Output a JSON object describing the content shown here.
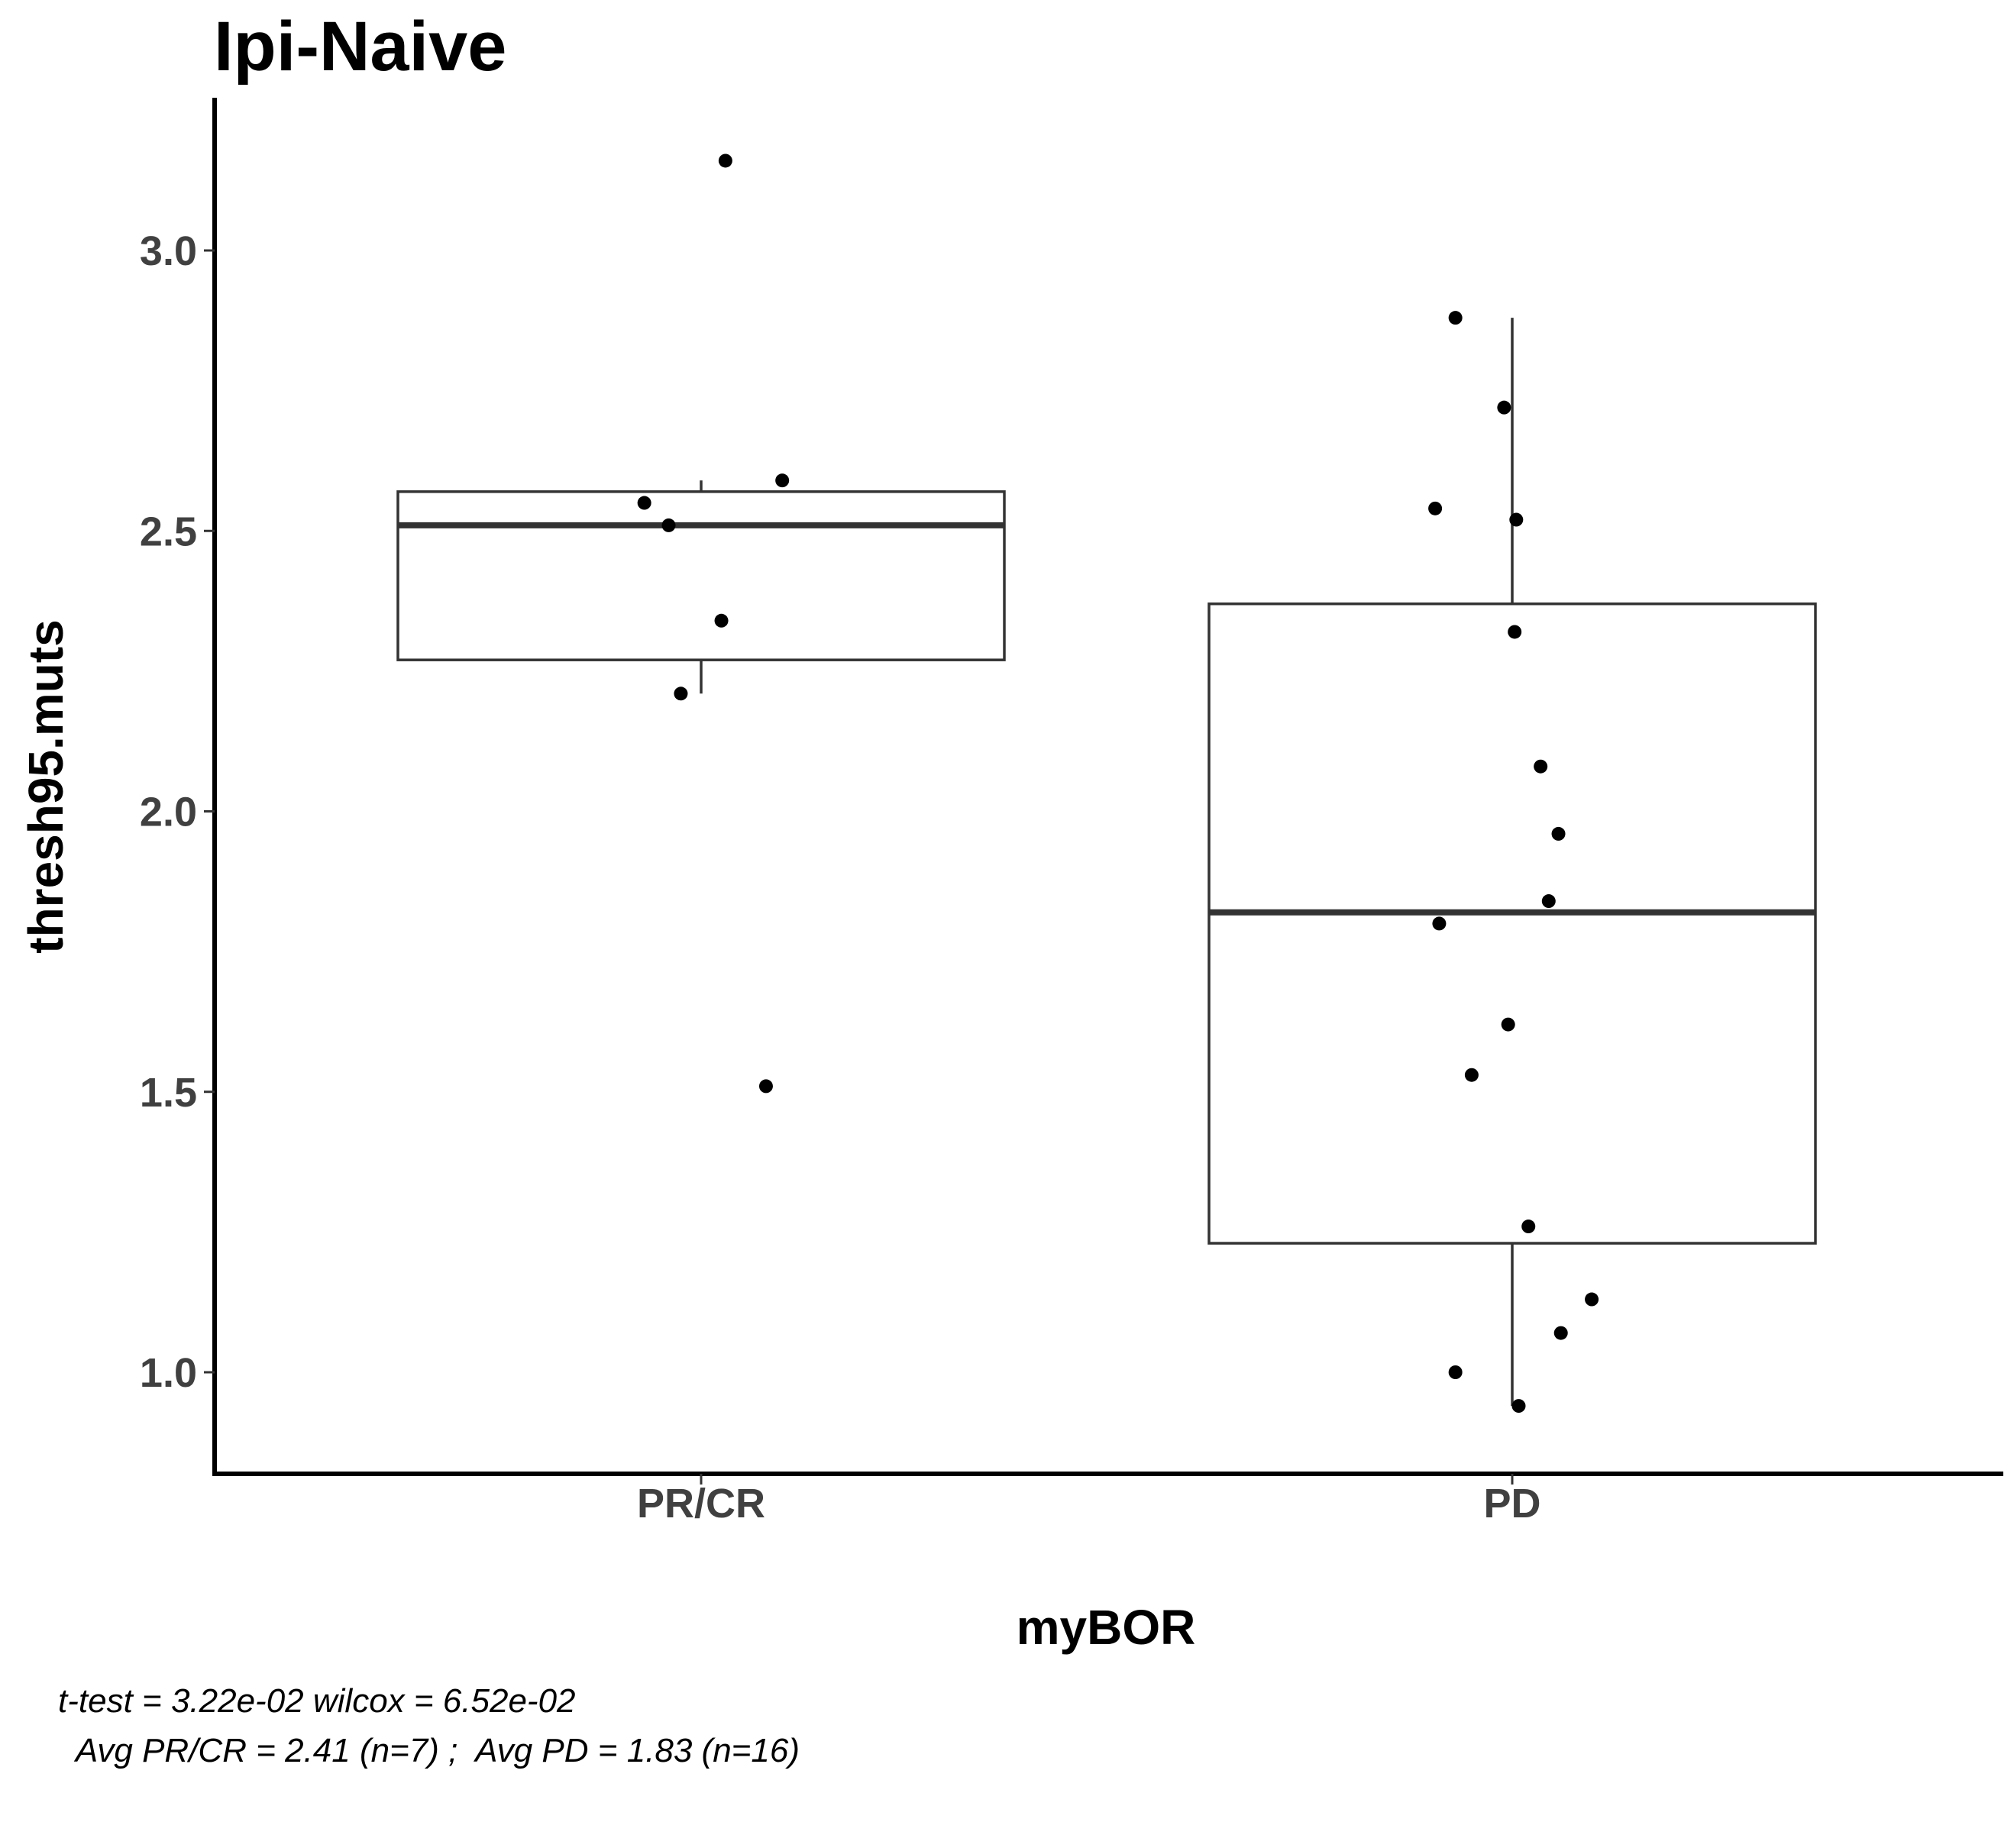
{
  "chart_data": {
    "type": "box",
    "title": "Ipi-Naive",
    "xlabel": "myBOR",
    "ylabel": "thresh95.muts",
    "categories": [
      "PR/CR",
      "PD"
    ],
    "ylim": [
      0.83,
      3.27
    ],
    "yticks": [
      1.0,
      1.5,
      2.0,
      2.5,
      3.0
    ],
    "ytick_labels": [
      "1.0",
      "1.5",
      "2.0",
      "2.5",
      "3.0"
    ],
    "grid": false,
    "legend": "none",
    "boxes": [
      {
        "category": "PR/CR",
        "q1": 2.27,
        "median": 2.51,
        "q3": 2.57,
        "whisker_low": 2.21,
        "whisker_high": 2.59
      },
      {
        "category": "PD",
        "q1": 1.23,
        "median": 1.82,
        "q3": 2.37,
        "whisker_low": 0.94,
        "whisker_high": 2.88
      }
    ],
    "points": [
      {
        "category": "PR/CR",
        "jitter": 0.03,
        "y": 3.16
      },
      {
        "category": "PR/CR",
        "jitter": 0.1,
        "y": 2.59
      },
      {
        "category": "PR/CR",
        "jitter": -0.07,
        "y": 2.55
      },
      {
        "category": "PR/CR",
        "jitter": -0.04,
        "y": 2.51
      },
      {
        "category": "PR/CR",
        "jitter": 0.025,
        "y": 2.34
      },
      {
        "category": "PR/CR",
        "jitter": -0.025,
        "y": 2.21
      },
      {
        "category": "PR/CR",
        "jitter": 0.08,
        "y": 1.51
      },
      {
        "category": "PD",
        "jitter": -0.07,
        "y": 2.88
      },
      {
        "category": "PD",
        "jitter": -0.01,
        "y": 2.72
      },
      {
        "category": "PD",
        "jitter": -0.095,
        "y": 2.54
      },
      {
        "category": "PD",
        "jitter": 0.005,
        "y": 2.52
      },
      {
        "category": "PD",
        "jitter": 0.003,
        "y": 2.32
      },
      {
        "category": "PD",
        "jitter": 0.035,
        "y": 2.08
      },
      {
        "category": "PD",
        "jitter": 0.057,
        "y": 1.96
      },
      {
        "category": "PD",
        "jitter": 0.045,
        "y": 1.84
      },
      {
        "category": "PD",
        "jitter": -0.09,
        "y": 1.8
      },
      {
        "category": "PD",
        "jitter": -0.005,
        "y": 1.62
      },
      {
        "category": "PD",
        "jitter": -0.05,
        "y": 1.53
      },
      {
        "category": "PD",
        "jitter": 0.02,
        "y": 1.26
      },
      {
        "category": "PD",
        "jitter": 0.098,
        "y": 1.13
      },
      {
        "category": "PD",
        "jitter": 0.06,
        "y": 1.07
      },
      {
        "category": "PD",
        "jitter": -0.07,
        "y": 1.0
      },
      {
        "category": "PD",
        "jitter": 0.008,
        "y": 0.94
      }
    ]
  },
  "annotations": {
    "line1": "t-test = 3.22e-02 wilcox = 6.52e-02",
    "line2": "  Avg PR/CR = 2.41 (n=7) ;  Avg PD = 1.83 (n=16)"
  }
}
